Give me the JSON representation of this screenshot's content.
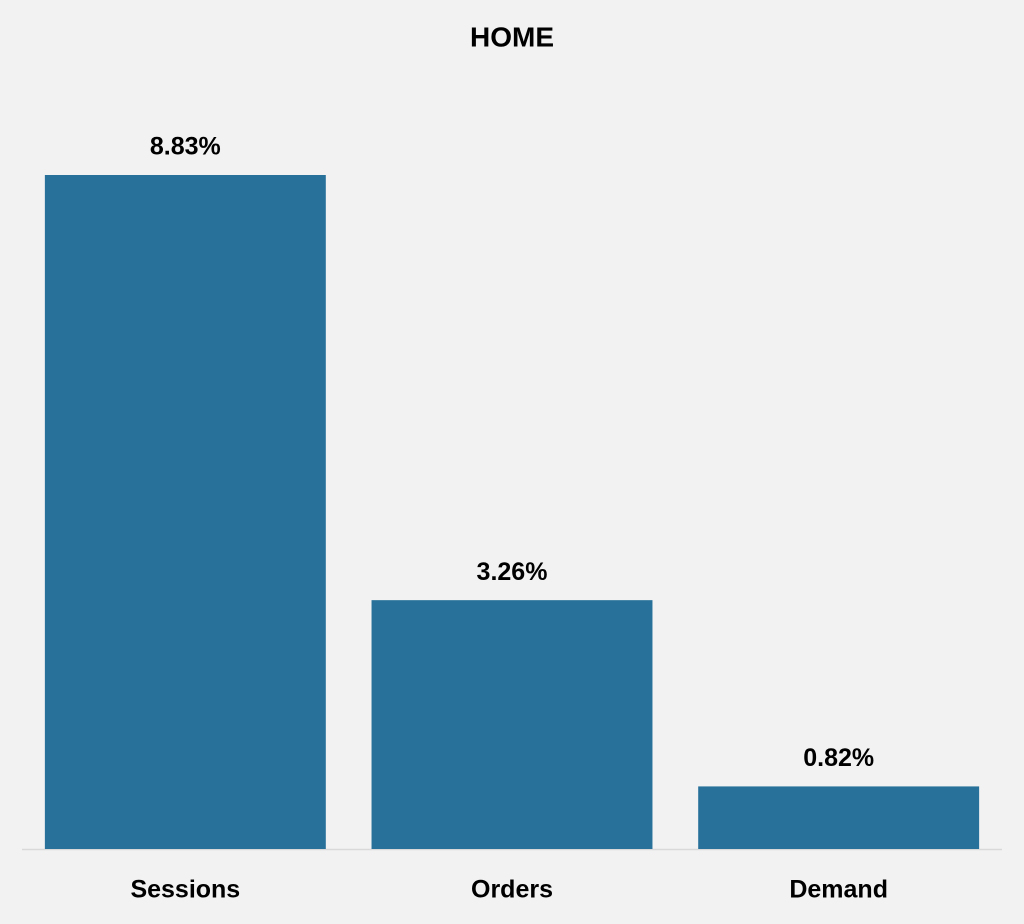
{
  "chart_data": {
    "type": "bar",
    "title": "HOME",
    "categories": [
      "Sessions",
      "Orders",
      "Demand"
    ],
    "values": [
      8.83,
      3.26,
      0.82
    ],
    "value_labels": [
      "8.83%",
      "3.26%",
      "0.82%"
    ],
    "color": "#27719a"
  }
}
